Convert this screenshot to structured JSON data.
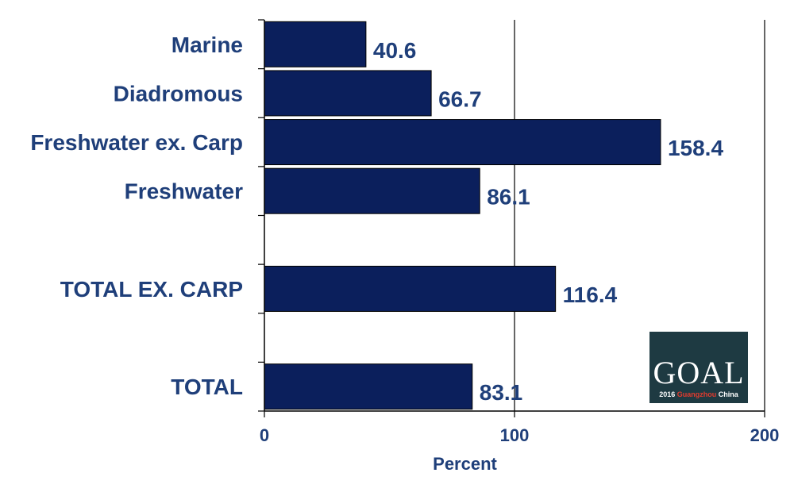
{
  "chart_data": {
    "type": "bar",
    "orientation": "horizontal",
    "categories": [
      "Marine",
      "Diadromous",
      "Freshwater ex. Carp",
      "Freshwater",
      "TOTAL EX. CARP",
      "TOTAL"
    ],
    "values": [
      40.6,
      66.7,
      158.4,
      86.1,
      116.4,
      83.1
    ],
    "value_labels": [
      "40.6",
      "66.7",
      "158.4",
      "86.1",
      "116.4",
      "83.1"
    ],
    "xlabel": "Percent",
    "xlim": [
      0,
      200
    ],
    "xticks": [
      "0",
      "100",
      "200"
    ],
    "xtick_values": [
      0,
      100,
      200
    ],
    "grid": "vertical",
    "bar_color": "#0b1f5c",
    "text_color": "#1f3f7a",
    "legend": "none"
  },
  "logo": {
    "text": "GOAL",
    "sub_year": "2016",
    "sub_city": "Guangzhou",
    "sub_country": "China",
    "bg_color": "#1e3a42",
    "accent_color": "#e23b2e"
  }
}
